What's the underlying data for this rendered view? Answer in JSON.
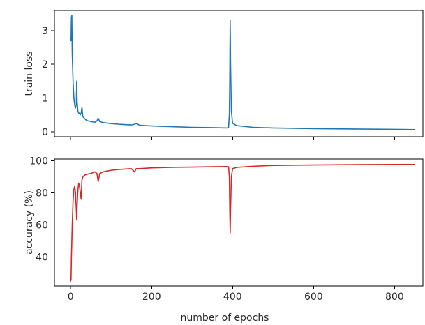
{
  "chart_data": [
    {
      "type": "line",
      "ylabel": "train loss",
      "xlabel": "",
      "xlim": [
        -40,
        870
      ],
      "ylim": [
        -0.15,
        3.6
      ],
      "xticks": [
        0,
        200,
        400,
        600,
        800
      ],
      "yticks": [
        0,
        1,
        2,
        3
      ],
      "x_tick_labels_shown": false,
      "grid": false,
      "color": "#1f77b4",
      "series": [
        {
          "x": [
            0,
            1,
            2,
            3,
            4,
            6,
            8,
            10,
            12,
            14,
            15,
            16,
            18,
            20,
            22,
            24,
            26,
            28,
            30,
            35,
            40,
            50,
            60,
            65,
            68,
            72,
            80,
            100,
            120,
            150,
            158,
            162,
            170,
            200,
            250,
            300,
            350,
            385,
            390,
            392,
            393,
            394,
            395,
            397,
            400,
            410,
            450,
            500,
            600,
            700,
            800,
            850
          ],
          "y": [
            2.75,
            2.7,
            3.4,
            3.45,
            2.3,
            1.5,
            1.0,
            0.8,
            0.7,
            0.8,
            1.5,
            0.9,
            0.6,
            0.55,
            0.55,
            0.5,
            0.55,
            0.72,
            0.45,
            0.38,
            0.33,
            0.3,
            0.28,
            0.32,
            0.4,
            0.3,
            0.27,
            0.24,
            0.22,
            0.2,
            0.22,
            0.25,
            0.19,
            0.17,
            0.15,
            0.13,
            0.12,
            0.11,
            0.12,
            0.5,
            1.5,
            3.3,
            2.0,
            0.6,
            0.25,
            0.18,
            0.13,
            0.11,
            0.09,
            0.08,
            0.07,
            0.06
          ]
        }
      ]
    },
    {
      "type": "line",
      "ylabel": "accuracy (%)",
      "xlabel": "number of epochs",
      "xlim": [
        -40,
        870
      ],
      "ylim": [
        22,
        101
      ],
      "xticks": [
        0,
        200,
        400,
        600,
        800
      ],
      "yticks": [
        40,
        60,
        80,
        100
      ],
      "grid": false,
      "color": "#d62728",
      "series": [
        {
          "x": [
            0,
            1,
            2,
            4,
            6,
            8,
            10,
            12,
            14,
            15,
            16,
            18,
            20,
            22,
            24,
            26,
            28,
            30,
            35,
            40,
            50,
            60,
            65,
            68,
            72,
            80,
            100,
            120,
            150,
            158,
            162,
            170,
            200,
            250,
            300,
            350,
            385,
            390,
            392,
            393,
            394,
            395,
            397,
            400,
            410,
            450,
            500,
            600,
            700,
            800,
            850
          ],
          "y": [
            25,
            26,
            40,
            60,
            75,
            82,
            84,
            80,
            70,
            63,
            72,
            82,
            86,
            84,
            80,
            76,
            88,
            90,
            91,
            91.5,
            92,
            93,
            92,
            87,
            92,
            93,
            94,
            94.5,
            95,
            93,
            95,
            95,
            95.5,
            95.8,
            96,
            96.2,
            96.3,
            96.2,
            90,
            70,
            55,
            70,
            90,
            95,
            95.8,
            96.5,
            97,
            97.3,
            97.5,
            97.6,
            97.6
          ]
        }
      ]
    }
  ]
}
